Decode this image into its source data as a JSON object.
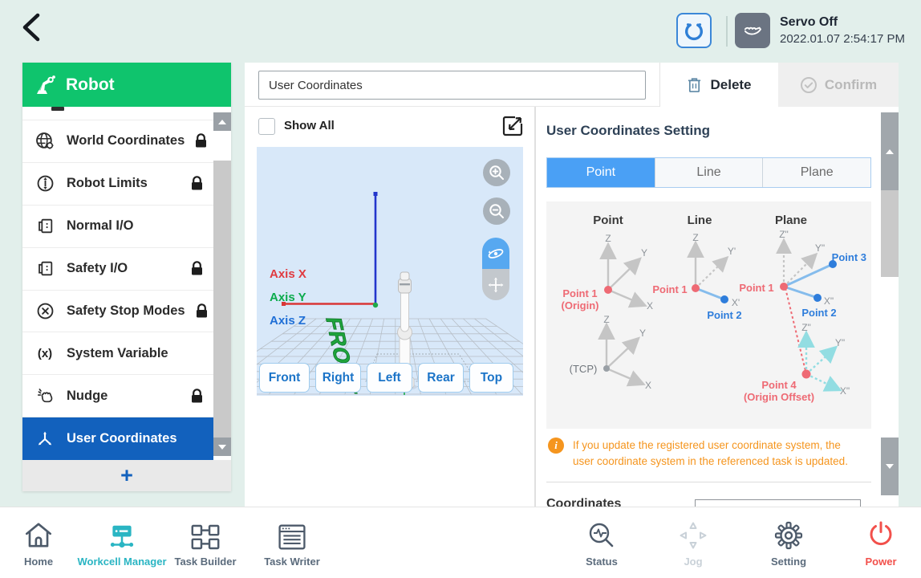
{
  "header": {
    "servo_status": "Servo Off",
    "timestamp": "2022.01.07 2:54:17 PM"
  },
  "sidebar": {
    "title": "Robot",
    "items": [
      {
        "label": "World Coordinates",
        "locked": true
      },
      {
        "label": "Robot Limits",
        "locked": true
      },
      {
        "label": "Normal I/O",
        "locked": false
      },
      {
        "label": "Safety I/O",
        "locked": true
      },
      {
        "label": "Safety Stop Modes",
        "locked": true
      },
      {
        "label": "System Variable",
        "locked": false,
        "icon_text": "(x)"
      },
      {
        "label": "Nudge",
        "locked": true
      },
      {
        "label": "User Coordinates",
        "locked": false,
        "selected": true
      }
    ],
    "add_label": "+"
  },
  "toolbar": {
    "name_value": "User Coordinates",
    "delete_label": "Delete",
    "confirm_label": "Confirm"
  },
  "viewport": {
    "show_all_label": "Show All",
    "axis_labels": {
      "x": "Axis X",
      "y": "Axis Y",
      "z": "Axis Z"
    },
    "front_text": "FRONT",
    "view_buttons": [
      "Front",
      "Right",
      "Left",
      "Rear",
      "Top"
    ]
  },
  "settings": {
    "title": "User Coordinates Setting",
    "tabs": [
      {
        "label": "Point",
        "active": true
      },
      {
        "label": "Line",
        "active": false
      },
      {
        "label": "Plane",
        "active": false
      }
    ],
    "diagram": {
      "headers": [
        "Point",
        "Line",
        "Plane"
      ],
      "point": {
        "z": "Z",
        "y": "Y",
        "x": "X",
        "p1": "Point 1",
        "p1_sub": "(Origin)"
      },
      "tcp": {
        "z": "Z",
        "y": "Y",
        "x": "X",
        "label": "(TCP)"
      },
      "line": {
        "z": "Z",
        "y": "Y'",
        "x": "X'",
        "p1": "Point 1",
        "p2": "Point 2"
      },
      "plane": {
        "z": "Z\"",
        "y": "Y\"",
        "x": "X\"",
        "p1": "Point 1",
        "p2": "Point 2",
        "p3": "Point 3"
      },
      "offset": {
        "z": "Z\"",
        "y": "Y\"",
        "x": "X\"",
        "p4": "Point 4",
        "p4_sub": "(Origin Offset)"
      }
    },
    "info_text": "If you update the registered user coordinate system, the user coordinate system in the referenced task is updated.",
    "bottom_partial_label": "Coordinates"
  },
  "nav": {
    "items": [
      {
        "label": "Home",
        "state": "default"
      },
      {
        "label": "Workcell Manager",
        "state": "active"
      },
      {
        "label": "Task Builder",
        "state": "default"
      },
      {
        "label": "Task Writer",
        "state": "default"
      },
      {
        "label": "Status",
        "state": "default"
      },
      {
        "label": "Jog",
        "state": "disabled"
      },
      {
        "label": "Setting",
        "state": "default"
      },
      {
        "label": "Power",
        "state": "power"
      }
    ]
  },
  "colors": {
    "accent_green": "#0fc46d",
    "selected_blue": "#1261bd",
    "tab_blue": "#4aa0f5",
    "teal_active": "#2ab5c3",
    "power_red": "#f2504b",
    "warning_orange": "#f5951e",
    "viewport_bg": "#d8e8f9",
    "axis_x_red": "#e03a40",
    "axis_y_green": "#0cab4c",
    "axis_z_blue": "#1f6fd6"
  }
}
